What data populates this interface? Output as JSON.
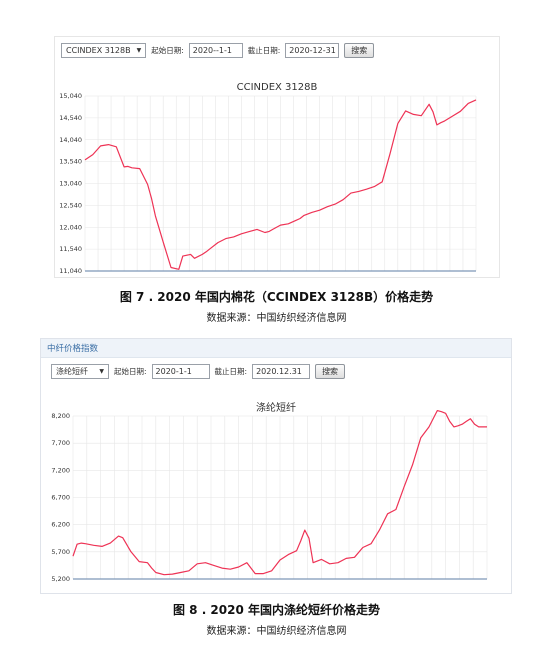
{
  "panel1": {
    "select_value": "CCINDEX 3128B",
    "start_label": "起始日期:",
    "start_value": "2020--1-1",
    "end_label": "截止日期:",
    "end_value": "2020-12-31",
    "search_label": "搜索"
  },
  "panel2": {
    "header_title": "中纤价格指数",
    "select_value": "涤纶短纤",
    "start_label": "起始日期:",
    "start_value": "2020-1-1",
    "end_label": "截止日期:",
    "end_value": "2020.12.31",
    "search_label": "搜索"
  },
  "caption1": "图 7 . 2020 年国内棉花（CCINDEX 3128B）价格走势",
  "source1": "数据来源：中国纺织经济信息网",
  "caption2": "图 8 .    2020 年国内涤纶短纤价格走势",
  "source2": "数据来源：中国纺织经济信息网",
  "colors": {
    "line": "#ee3355",
    "grid": "#e6e6e6",
    "axis": "#7d96b8"
  },
  "chart_data": [
    {
      "type": "line",
      "title": "CCINDEX 3128B",
      "xlabel": "",
      "ylabel": "",
      "ylim": [
        11040,
        15040
      ],
      "yticks": [
        "11,040",
        "11,540",
        "12,040",
        "12,540",
        "13,040",
        "13,540",
        "14,040",
        "14,540",
        "15,040"
      ],
      "grid": true,
      "x": [
        0,
        2,
        4,
        6,
        8,
        10,
        11,
        12,
        14,
        16,
        17,
        18,
        20,
        22,
        24,
        25,
        27,
        28,
        30,
        31,
        32,
        34,
        36,
        38,
        40,
        42,
        44,
        46,
        47,
        48,
        50,
        52,
        54,
        55,
        56,
        58,
        60,
        62,
        64,
        66,
        68,
        70,
        72,
        74,
        76,
        78,
        80,
        82,
        84,
        86,
        88,
        89,
        90,
        91,
        92,
        94,
        96,
        98,
        100
      ],
      "series": [
        {
          "values": [
            13580,
            13700,
            13900,
            13930,
            13880,
            13420,
            13430,
            13400,
            13380,
            13020,
            12700,
            12300,
            11700,
            11120,
            11080,
            11380,
            11420,
            11330,
            11420,
            11480,
            11550,
            11690,
            11780,
            11820,
            11890,
            11940,
            11990,
            11920,
            11940,
            11990,
            12090,
            12120,
            12200,
            12240,
            12310,
            12380,
            12430,
            12510,
            12570,
            12670,
            12820,
            12860,
            12910,
            12970,
            13080,
            13720,
            14410,
            14700,
            14620,
            14590,
            14850,
            14680,
            14380,
            14430,
            14470,
            14580,
            14690,
            14870,
            14950
          ]
        }
      ]
    },
    {
      "type": "line",
      "title": "涤纶短纤",
      "xlabel": "",
      "ylabel": "",
      "ylim": [
        5200,
        8200
      ],
      "yticks": [
        "5,200",
        "5,700",
        "6,200",
        "6,700",
        "7,200",
        "7,700",
        "8,200"
      ],
      "grid": true,
      "x": [
        0,
        1,
        2,
        3,
        5,
        7,
        9,
        11,
        12,
        14,
        16,
        18,
        19,
        20,
        22,
        24,
        26,
        28,
        30,
        32,
        34,
        36,
        38,
        40,
        42,
        44,
        46,
        48,
        50,
        52,
        54,
        55,
        56,
        57,
        58,
        60,
        62,
        64,
        66,
        68,
        70,
        72,
        74,
        76,
        78,
        80,
        82,
        84,
        86,
        88,
        89,
        90,
        91,
        92,
        93,
        94,
        95,
        96,
        97,
        98,
        100
      ],
      "series": [
        {
          "values": [
            5620,
            5840,
            5860,
            5850,
            5820,
            5800,
            5860,
            5990,
            5960,
            5700,
            5520,
            5500,
            5400,
            5320,
            5280,
            5290,
            5320,
            5350,
            5480,
            5500,
            5450,
            5400,
            5380,
            5420,
            5500,
            5300,
            5300,
            5350,
            5550,
            5650,
            5720,
            5900,
            6100,
            5950,
            5500,
            5560,
            5480,
            5500,
            5580,
            5600,
            5780,
            5850,
            6100,
            6400,
            6480,
            6900,
            7300,
            7800,
            8000,
            8300,
            8280,
            8250,
            8100,
            8000,
            8020,
            8050,
            8100,
            8150,
            8050,
            8000,
            8000
          ]
        }
      ]
    }
  ]
}
